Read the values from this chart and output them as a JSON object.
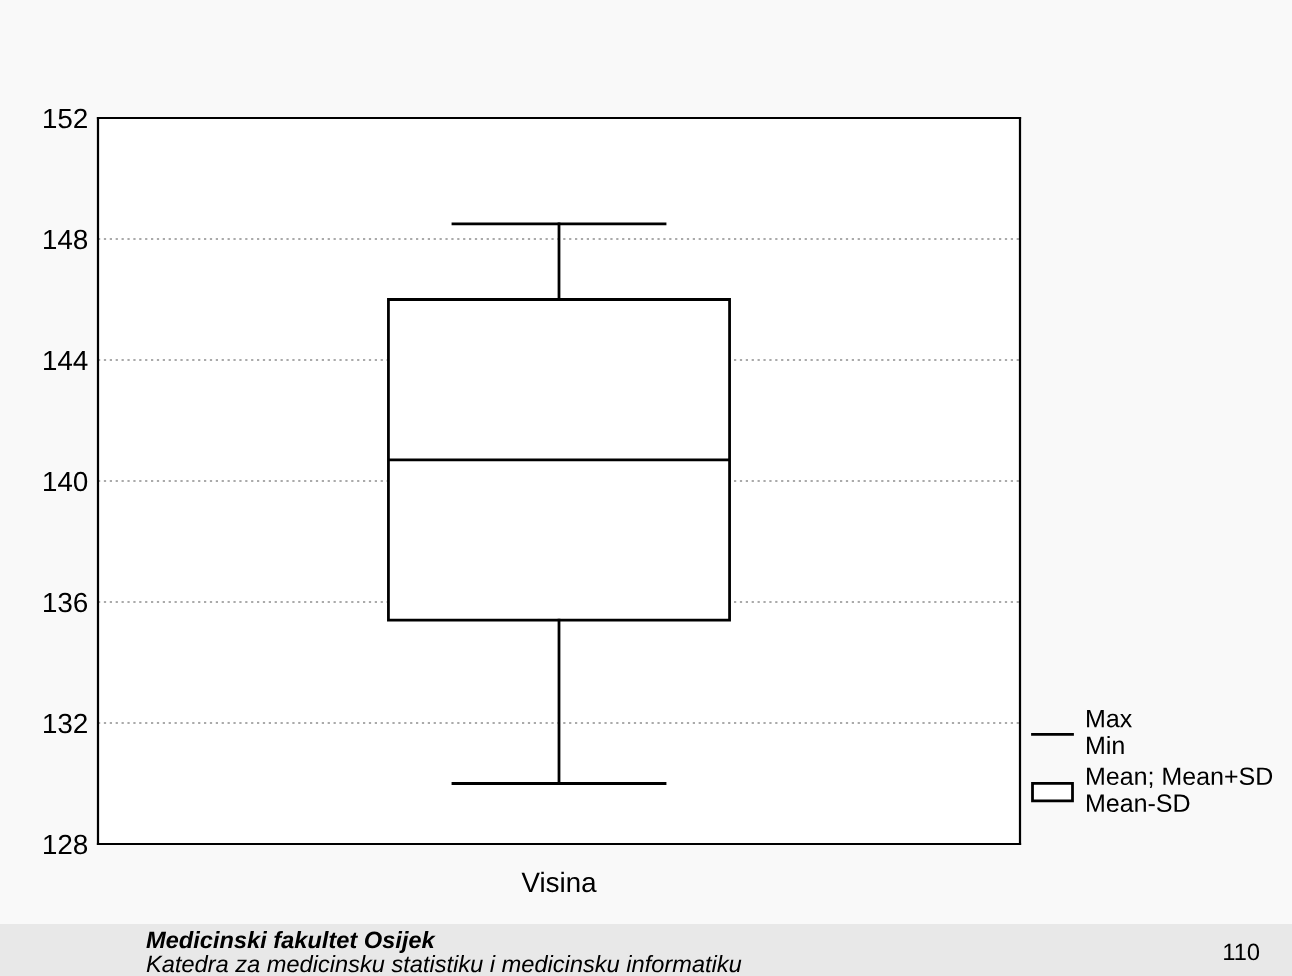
{
  "chart_data": {
    "type": "box",
    "categories": [
      "Visina"
    ],
    "series": [
      {
        "name": "Mean; Mean+SD\nMean-SD",
        "color": "#000000",
        "boxes": [
          {
            "low": 130.0,
            "q1": 135.4,
            "median": 140.7,
            "q3": 146.0,
            "high": 148.5
          }
        ]
      }
    ],
    "ylim": [
      128,
      152
    ],
    "yticks": [
      128,
      132,
      136,
      140,
      144,
      148,
      152
    ],
    "grid": "y",
    "legend": "right",
    "annotations": [
      "Max\nMin",
      "Medicinski fakultet Osijek",
      "Katedra za medicinsku statistiku i medicinsku informatiku",
      "110"
    ]
  }
}
